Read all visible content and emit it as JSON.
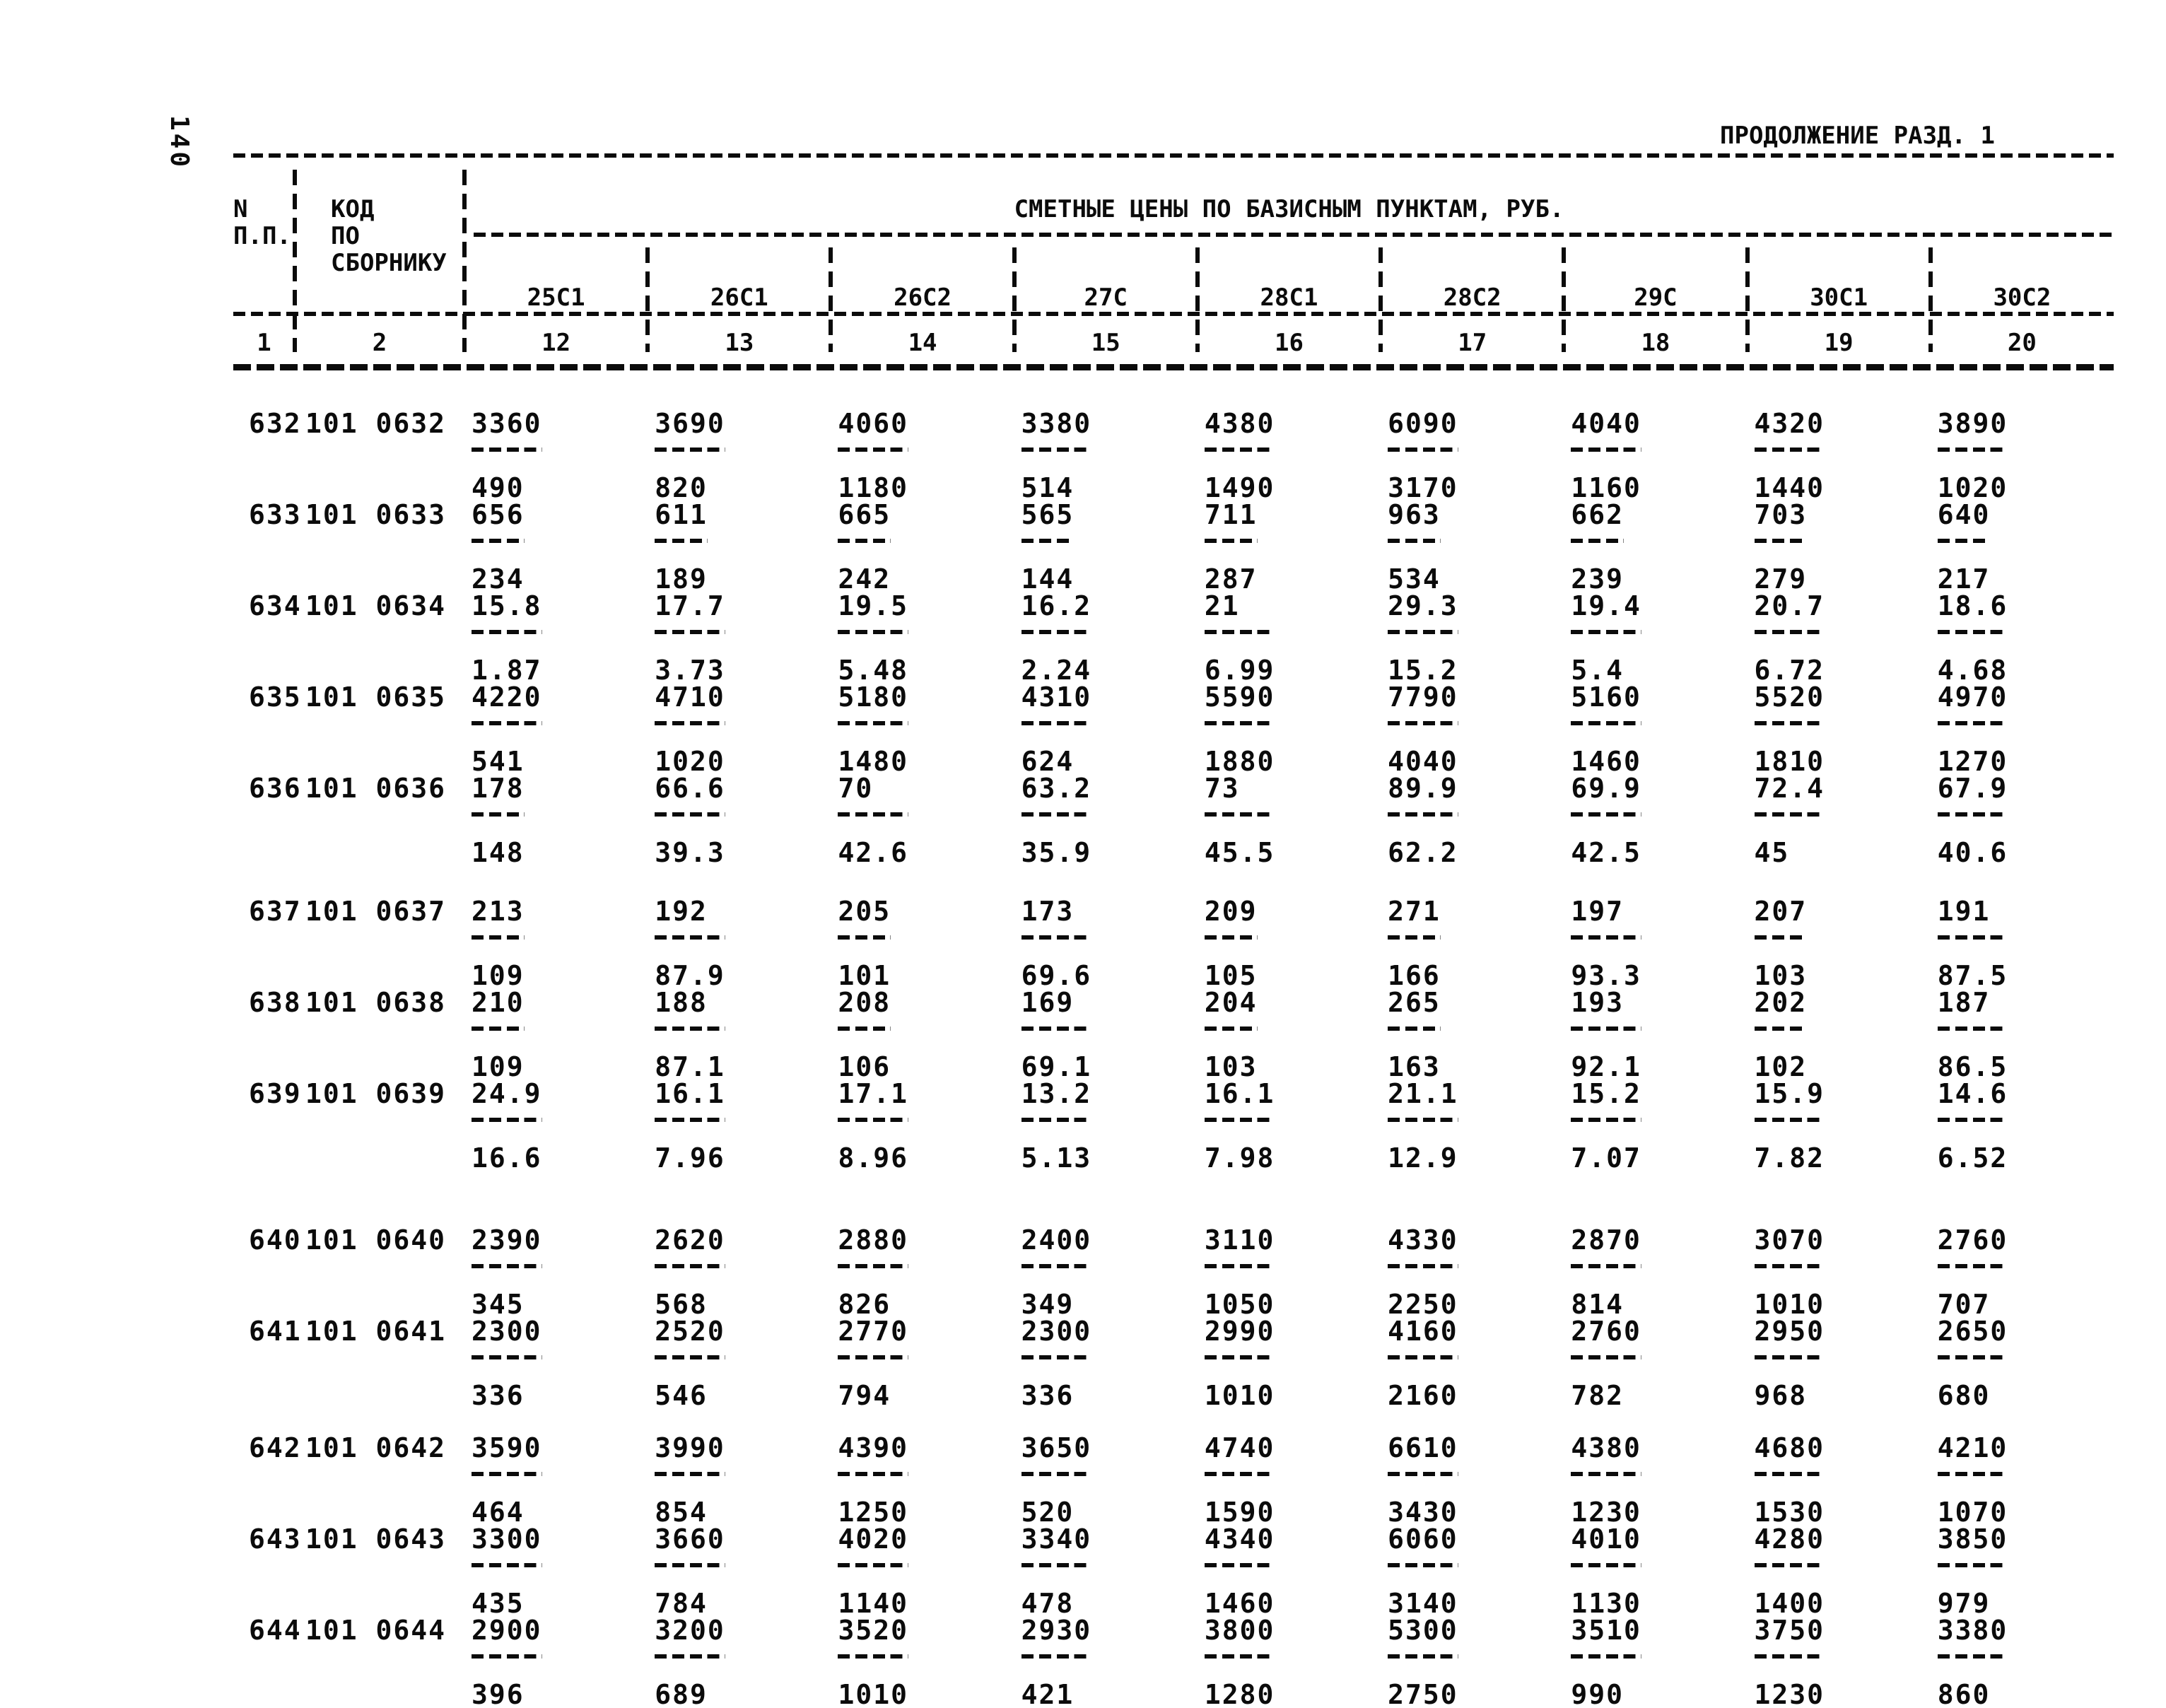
{
  "page": {
    "number": "140",
    "continuation": "ПРОДОЛЖЕНИЕ РАЗД. 1"
  },
  "table": {
    "header": {
      "col_np": [
        "N",
        "П.П."
      ],
      "col_code": [
        "КОД",
        "ПО",
        "СБОРНИКУ"
      ],
      "prices_title": "СМЕТНЫЕ ЦЕНЫ ПО БАЗИСНЫМ ПУНКТАМ, РУБ.",
      "price_columns": [
        "25С1",
        "26С1",
        "26С2",
        "27С",
        "28С1",
        "28С2",
        "29С",
        "30С1",
        "30С2"
      ],
      "column_numbers": [
        "1",
        "2",
        "12",
        "13",
        "14",
        "15",
        "16",
        "17",
        "18",
        "19",
        "20"
      ]
    },
    "rows": [
      {
        "n": "632",
        "code": "101 0632",
        "values": [
          [
            "3360",
            "490"
          ],
          [
            "3690",
            "820"
          ],
          [
            "4060",
            "1180"
          ],
          [
            "3380",
            "514"
          ],
          [
            "4380",
            "1490"
          ],
          [
            "6090",
            "3170"
          ],
          [
            "4040",
            "1160"
          ],
          [
            "4320",
            "1440"
          ],
          [
            "3890",
            "1020"
          ]
        ]
      },
      {
        "n": "633",
        "code": "101 0633",
        "values": [
          [
            "656",
            "234"
          ],
          [
            "611",
            "189"
          ],
          [
            "665",
            "242"
          ],
          [
            "565",
            "144"
          ],
          [
            "711",
            "287"
          ],
          [
            "963",
            "534"
          ],
          [
            "662",
            "239"
          ],
          [
            "703",
            "279"
          ],
          [
            "640",
            "217"
          ]
        ]
      },
      {
        "n": "634",
        "code": "101 0634",
        "values": [
          [
            "15.8",
            "1.87"
          ],
          [
            "17.7",
            "3.73"
          ],
          [
            "19.5",
            "5.48"
          ],
          [
            "16.2",
            "2.24"
          ],
          [
            "21",
            "6.99"
          ],
          [
            "29.3",
            "15.2"
          ],
          [
            "19.4",
            "5.4"
          ],
          [
            "20.7",
            "6.72"
          ],
          [
            "18.6",
            "4.68"
          ]
        ]
      },
      {
        "n": "635",
        "code": "101 0635",
        "values": [
          [
            "4220",
            "541"
          ],
          [
            "4710",
            "1020"
          ],
          [
            "5180",
            "1480"
          ],
          [
            "4310",
            "624"
          ],
          [
            "5590",
            "1880"
          ],
          [
            "7790",
            "4040"
          ],
          [
            "5160",
            "1460"
          ],
          [
            "5520",
            "1810"
          ],
          [
            "4970",
            "1270"
          ]
        ]
      },
      {
        "n": "636",
        "code": "101 0636",
        "values": [
          [
            "178",
            "148"
          ],
          [
            "66.6",
            "39.3"
          ],
          [
            "70",
            "42.6"
          ],
          [
            "63.2",
            "35.9"
          ],
          [
            "73",
            "45.5"
          ],
          [
            "89.9",
            "62.2"
          ],
          [
            "69.9",
            "42.5"
          ],
          [
            "72.4",
            "45"
          ],
          [
            "67.9",
            "40.6"
          ]
        ]
      },
      {
        "n": "637",
        "code": "101 0637",
        "values": [
          [
            "213",
            "109"
          ],
          [
            "192",
            "87.9"
          ],
          [
            "205",
            "101"
          ],
          [
            "173",
            "69.6"
          ],
          [
            "209",
            "105"
          ],
          [
            "271",
            "166"
          ],
          [
            "197",
            "93.3"
          ],
          [
            "207",
            "103"
          ],
          [
            "191",
            "87.5"
          ]
        ]
      },
      {
        "n": "638",
        "code": "101 0638",
        "values": [
          [
            "210",
            "109"
          ],
          [
            "188",
            "87.1"
          ],
          [
            "208",
            "106"
          ],
          [
            "169",
            "69.1"
          ],
          [
            "204",
            "103"
          ],
          [
            "265",
            "163"
          ],
          [
            "193",
            "92.1"
          ],
          [
            "202",
            "102"
          ],
          [
            "187",
            "86.5"
          ]
        ]
      },
      {
        "n": "639",
        "code": "101 0639",
        "values": [
          [
            "24.9",
            "16.6"
          ],
          [
            "16.1",
            "7.96"
          ],
          [
            "17.1",
            "8.96"
          ],
          [
            "13.2",
            "5.13"
          ],
          [
            "16.1",
            "7.98"
          ],
          [
            "21.1",
            "12.9"
          ],
          [
            "15.2",
            "7.07"
          ],
          [
            "15.9",
            "7.82"
          ],
          [
            "14.6",
            "6.52"
          ]
        ]
      },
      {
        "n": "640",
        "code": "101 0640",
        "values": [
          [
            "2390",
            "345"
          ],
          [
            "2620",
            "568"
          ],
          [
            "2880",
            "826"
          ],
          [
            "2400",
            "349"
          ],
          [
            "3110",
            "1050"
          ],
          [
            "4330",
            "2250"
          ],
          [
            "2870",
            "814"
          ],
          [
            "3070",
            "1010"
          ],
          [
            "2760",
            "707"
          ]
        ]
      },
      {
        "n": "641",
        "code": "101 0641",
        "values": [
          [
            "2300",
            "336"
          ],
          [
            "2520",
            "546"
          ],
          [
            "2770",
            "794"
          ],
          [
            "2300",
            "336"
          ],
          [
            "2990",
            "1010"
          ],
          [
            "4160",
            "2160"
          ],
          [
            "2760",
            "782"
          ],
          [
            "2950",
            "968"
          ],
          [
            "2650",
            "680"
          ]
        ]
      },
      {
        "n": "642",
        "code": "101 0642",
        "values": [
          [
            "3590",
            "464"
          ],
          [
            "3990",
            "854"
          ],
          [
            "4390",
            "1250"
          ],
          [
            "3650",
            "520"
          ],
          [
            "4740",
            "1590"
          ],
          [
            "6610",
            "3430"
          ],
          [
            "4380",
            "1230"
          ],
          [
            "4680",
            "1530"
          ],
          [
            "4210",
            "1070"
          ]
        ]
      },
      {
        "n": "643",
        "code": "101 0643",
        "values": [
          [
            "3300",
            "435"
          ],
          [
            "3660",
            "784"
          ],
          [
            "4020",
            "1140"
          ],
          [
            "3340",
            "478"
          ],
          [
            "4340",
            "1460"
          ],
          [
            "6060",
            "3140"
          ],
          [
            "4010",
            "1130"
          ],
          [
            "4280",
            "1400"
          ],
          [
            "3850",
            "979"
          ]
        ]
      },
      {
        "n": "644",
        "code": "101 0644",
        "values": [
          [
            "2900",
            "396"
          ],
          [
            "3200",
            "689"
          ],
          [
            "3520",
            "1010"
          ],
          [
            "2930",
            "421"
          ],
          [
            "3800",
            "1280"
          ],
          [
            "5300",
            "2750"
          ],
          [
            "3510",
            "990"
          ],
          [
            "3750",
            "1230"
          ],
          [
            "3380",
            "860"
          ]
        ]
      }
    ]
  }
}
